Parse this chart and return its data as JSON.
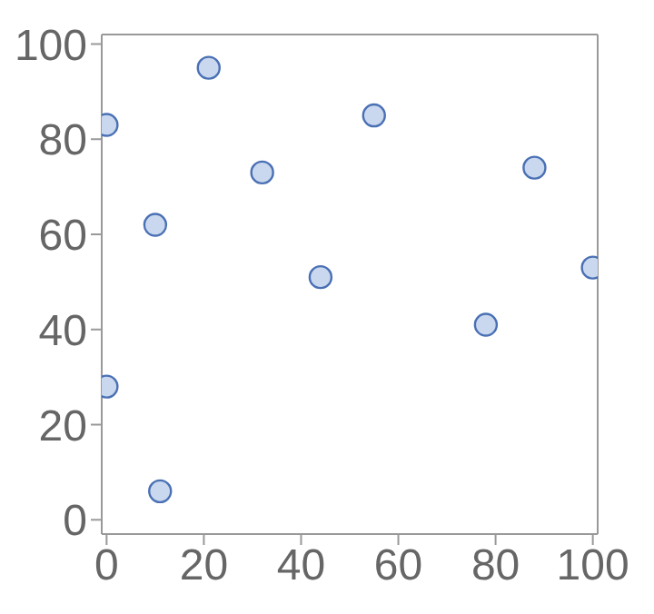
{
  "chart_data": {
    "type": "scatter",
    "x": [
      0,
      0,
      10,
      11,
      21,
      32,
      44,
      55,
      78,
      88,
      100
    ],
    "series": [
      {
        "color": "#4a70b4",
        "values": [
          83,
          28,
          62,
          6,
          95,
          73,
          51,
          85,
          41,
          74,
          53
        ]
      }
    ],
    "xlim": [
      -1,
      101
    ],
    "ylim": [
      -3,
      102
    ],
    "xticks": [
      0,
      20,
      40,
      60,
      80,
      100
    ],
    "yticks": [
      0,
      20,
      40,
      60,
      80,
      100
    ],
    "marker": "circle"
  }
}
